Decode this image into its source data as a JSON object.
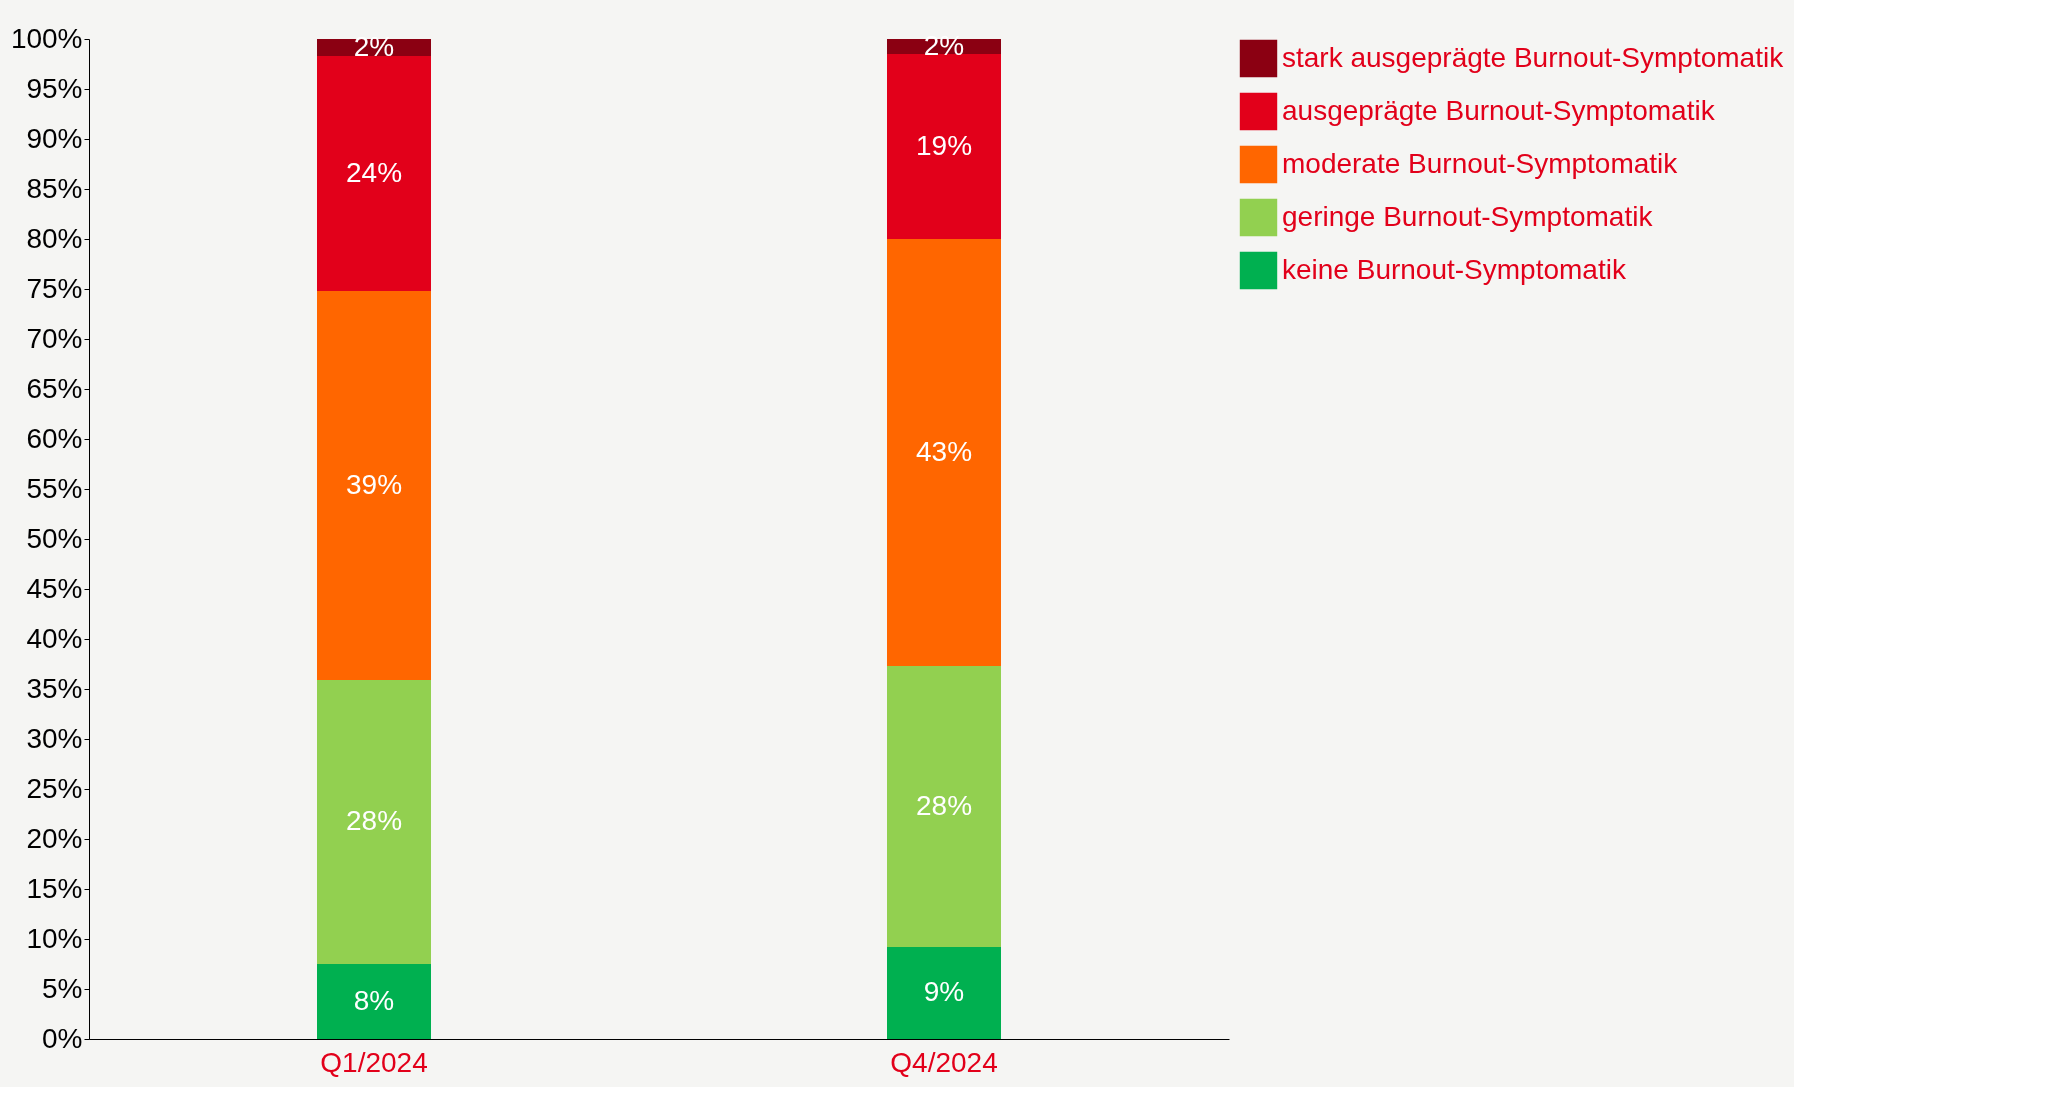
{
  "chart_data": {
    "type": "bar",
    "stacked": true,
    "categories": [
      "Q1/2024",
      "Q4/2024"
    ],
    "series": [
      {
        "name": "keine Burnout-Symptomatik",
        "color": "#00b050",
        "values": [
          7.5,
          9.2
        ],
        "value_labels": [
          "8%",
          "9%"
        ]
      },
      {
        "name": "geringe Burnout-Symptomatik",
        "color": "#92d050",
        "values": [
          28.4,
          28.1
        ],
        "value_labels": [
          "28%",
          "28%"
        ]
      },
      {
        "name": "moderate Burnout-Symptomatik",
        "color": "#ff6600",
        "values": [
          38.9,
          42.7
        ],
        "value_labels": [
          "39%",
          "43%"
        ]
      },
      {
        "name": "ausgeprägte Burnout-Symptomatik",
        "color": "#e2001a",
        "values": [
          23.5,
          18.5
        ],
        "value_labels": [
          "24%",
          "19%"
        ]
      },
      {
        "name": "stark ausgeprägte Burnout-Symptomatik",
        "color": "#8b0012",
        "values": [
          1.7,
          1.5
        ],
        "value_labels": [
          "2%",
          "2%"
        ]
      }
    ],
    "ylim": [
      0,
      100
    ],
    "yticks": [
      {
        "value": 0,
        "label": "0%"
      },
      {
        "value": 5,
        "label": "5%"
      },
      {
        "value": 10,
        "label": "10%"
      },
      {
        "value": 15,
        "label": "15%"
      },
      {
        "value": 20,
        "label": "20%"
      },
      {
        "value": 25,
        "label": "25%"
      },
      {
        "value": 30,
        "label": "30%"
      },
      {
        "value": 35,
        "label": "35%"
      },
      {
        "value": 40,
        "label": "40%"
      },
      {
        "value": 45,
        "label": "45%"
      },
      {
        "value": 50,
        "label": "50%"
      },
      {
        "value": 55,
        "label": "55%"
      },
      {
        "value": 60,
        "label": "60%"
      },
      {
        "value": 65,
        "label": "65%"
      },
      {
        "value": 70,
        "label": "70%"
      },
      {
        "value": 75,
        "label": "75%"
      },
      {
        "value": 80,
        "label": "80%"
      },
      {
        "value": 85,
        "label": "85%"
      },
      {
        "value": 90,
        "label": "90%"
      },
      {
        "value": 95,
        "label": "95%"
      },
      {
        "value": 100,
        "label": "100%"
      }
    ],
    "grid": false,
    "legend": "top right"
  }
}
